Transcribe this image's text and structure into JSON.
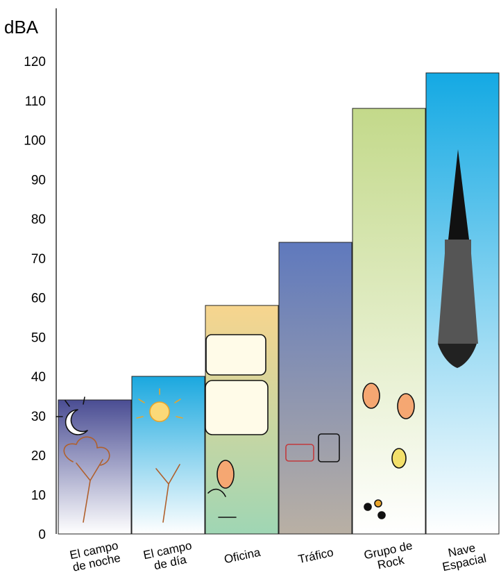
{
  "chart_data": {
    "type": "bar",
    "ylabel": "dBA",
    "ylim": [
      0,
      120
    ],
    "yticks": [
      0,
      10,
      20,
      30,
      40,
      50,
      60,
      70,
      80,
      90,
      100,
      110,
      120
    ],
    "categories": [
      [
        "El campo",
        "de noche"
      ],
      [
        "El campo",
        "de día"
      ],
      [
        "Oficina"
      ],
      [
        "Tráfico"
      ],
      [
        "Grupo de",
        "Rock"
      ],
      [
        "Nave",
        "Espacial"
      ]
    ],
    "values": [
      34,
      40,
      58,
      74,
      108,
      117
    ],
    "gradients": [
      [
        "#4a4d93",
        "#ffffff"
      ],
      [
        "#1aa8df",
        "#ffffff"
      ],
      [
        "#f7d58e",
        "#9fd6b4"
      ],
      [
        "#5f79bd",
        "#b9b0a4"
      ],
      [
        "#c3d98a",
        "#ffffff"
      ],
      [
        "#14a9e3",
        "#ffffff"
      ]
    ],
    "grid": false,
    "legend": "none"
  }
}
